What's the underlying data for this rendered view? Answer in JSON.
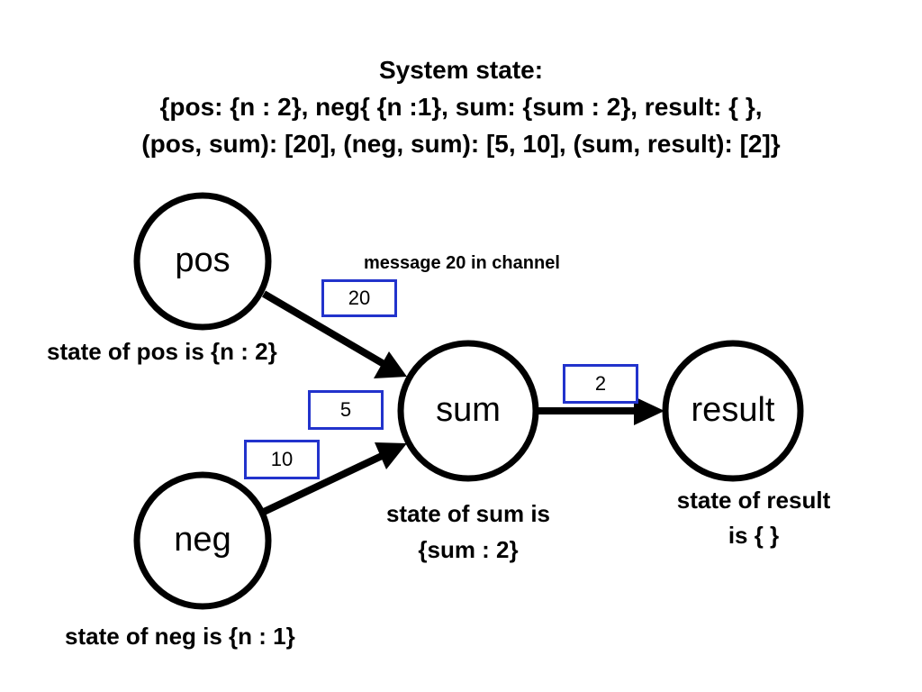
{
  "title": {
    "line1": "System state:",
    "line2": "{pos: {n : 2},  neg{ {n :1},  sum: {sum : 2},  result: { },",
    "line3": "(pos, sum): [20],  (neg, sum): [5, 10],  (sum, result): [2]}"
  },
  "nodes": {
    "pos": "pos",
    "neg": "neg",
    "sum": "sum",
    "result": "result"
  },
  "captions": {
    "pos": "state of pos is {n : 2}",
    "neg": "state of neg is {n : 1}",
    "sum_line1": "state of sum is",
    "sum_line2": "{sum : 2}",
    "result_line1": "state of result",
    "result_line2": "is { }"
  },
  "annotation": "message 20 in channel",
  "messages": {
    "pos_sum": "20",
    "neg_sum_first": "5",
    "neg_sum_second": "10",
    "sum_result": "2"
  },
  "colors": {
    "message_border": "#2233cc",
    "stroke": "#000000"
  }
}
